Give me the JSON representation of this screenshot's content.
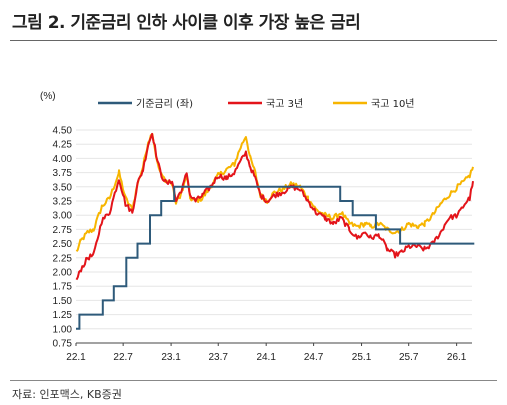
{
  "title": "그림 2. 기준금리 인하 사이클 이후 가장 높은 금리",
  "source": "자료: 인포맥스, KB증권",
  "chart_data": {
    "type": "line",
    "unit": "(%)",
    "x_ticks": [
      "22.1",
      "22.7",
      "23.1",
      "23.7",
      "24.1",
      "24.7",
      "25.1",
      "25.7",
      "26.1"
    ],
    "xlim": [
      "2022-01",
      "2026-03"
    ],
    "ylim": [
      0.75,
      4.5
    ],
    "y_ticks": [
      "4.50",
      "4.25",
      "4.00",
      "3.75",
      "3.50",
      "3.25",
      "3.00",
      "2.75",
      "2.50",
      "2.25",
      "2.00",
      "1.75",
      "1.50",
      "1.25",
      "1.00",
      "0.75"
    ],
    "legend_position": "top",
    "colors": {
      "base_rate": "#2e5a7a",
      "ktb3y": "#e3141a",
      "ktb10y": "#f7b500",
      "grid": "#e6e6e6"
    },
    "series": [
      {
        "name": "기준금리 (좌)",
        "kind": "step",
        "points": [
          [
            "2022-01-01",
            1.0
          ],
          [
            "2022-01-14",
            1.25
          ],
          [
            "2022-04-14",
            1.5
          ],
          [
            "2022-05-26",
            1.75
          ],
          [
            "2022-07-13",
            2.25
          ],
          [
            "2022-08-25",
            2.5
          ],
          [
            "2022-10-12",
            3.0
          ],
          [
            "2022-11-24",
            3.25
          ],
          [
            "2023-01-13",
            3.5
          ],
          [
            "2024-10-11",
            3.25
          ],
          [
            "2024-11-28",
            3.0
          ],
          [
            "2025-02-25",
            2.75
          ],
          [
            "2025-05-29",
            2.5
          ],
          [
            "2026-03-10",
            2.5
          ]
        ]
      },
      {
        "name": "국고 3년",
        "kind": "line",
        "points": [
          [
            "2022-01-03",
            1.85
          ],
          [
            "2022-01-20",
            2.05
          ],
          [
            "2022-02-15",
            2.25
          ],
          [
            "2022-03-10",
            2.3
          ],
          [
            "2022-04-10",
            2.9
          ],
          [
            "2022-05-10",
            3.05
          ],
          [
            "2022-06-15",
            3.65
          ],
          [
            "2022-07-10",
            3.2
          ],
          [
            "2022-08-05",
            3.05
          ],
          [
            "2022-08-25",
            3.55
          ],
          [
            "2022-09-15",
            3.8
          ],
          [
            "2022-10-05",
            4.25
          ],
          [
            "2022-10-21",
            4.45
          ],
          [
            "2022-11-10",
            3.95
          ],
          [
            "2022-11-25",
            3.7
          ],
          [
            "2022-12-15",
            3.55
          ],
          [
            "2023-01-05",
            3.6
          ],
          [
            "2023-01-20",
            3.25
          ],
          [
            "2023-02-15",
            3.5
          ],
          [
            "2023-03-02",
            3.75
          ],
          [
            "2023-03-15",
            3.35
          ],
          [
            "2023-04-05",
            3.25
          ],
          [
            "2023-05-01",
            3.35
          ],
          [
            "2023-06-01",
            3.5
          ],
          [
            "2023-07-01",
            3.7
          ],
          [
            "2023-08-01",
            3.65
          ],
          [
            "2023-09-01",
            3.75
          ],
          [
            "2023-09-25",
            3.95
          ],
          [
            "2023-10-15",
            4.1
          ],
          [
            "2023-11-01",
            3.85
          ],
          [
            "2023-11-20",
            3.65
          ],
          [
            "2023-12-10",
            3.35
          ],
          [
            "2024-01-05",
            3.25
          ],
          [
            "2024-02-01",
            3.35
          ],
          [
            "2024-03-01",
            3.4
          ],
          [
            "2024-04-10",
            3.5
          ],
          [
            "2024-05-10",
            3.45
          ],
          [
            "2024-06-10",
            3.25
          ],
          [
            "2024-07-10",
            3.05
          ],
          [
            "2024-08-15",
            2.95
          ],
          [
            "2024-09-15",
            2.85
          ],
          [
            "2024-10-15",
            2.95
          ],
          [
            "2024-11-15",
            2.75
          ],
          [
            "2024-12-15",
            2.6
          ],
          [
            "2025-01-15",
            2.7
          ],
          [
            "2025-02-05",
            2.6
          ],
          [
            "2025-03-10",
            2.65
          ],
          [
            "2025-04-10",
            2.4
          ],
          [
            "2025-05-10",
            2.3
          ],
          [
            "2025-06-05",
            2.35
          ],
          [
            "2025-07-01",
            2.45
          ],
          [
            "2025-08-01",
            2.45
          ],
          [
            "2025-09-01",
            2.4
          ],
          [
            "2025-10-01",
            2.5
          ],
          [
            "2025-11-01",
            2.7
          ],
          [
            "2025-12-01",
            2.95
          ],
          [
            "2026-01-05",
            3.0
          ],
          [
            "2026-02-01",
            3.2
          ],
          [
            "2026-02-20",
            3.3
          ],
          [
            "2026-03-05",
            3.6
          ]
        ]
      },
      {
        "name": "국고 10년",
        "kind": "line",
        "points": [
          [
            "2022-01-03",
            2.35
          ],
          [
            "2022-01-20",
            2.55
          ],
          [
            "2022-02-15",
            2.7
          ],
          [
            "2022-03-10",
            2.75
          ],
          [
            "2022-04-10",
            3.15
          ],
          [
            "2022-05-10",
            3.3
          ],
          [
            "2022-06-15",
            3.75
          ],
          [
            "2022-07-10",
            3.3
          ],
          [
            "2022-08-05",
            3.1
          ],
          [
            "2022-08-25",
            3.55
          ],
          [
            "2022-09-15",
            3.85
          ],
          [
            "2022-10-05",
            4.3
          ],
          [
            "2022-10-21",
            4.45
          ],
          [
            "2022-11-10",
            3.9
          ],
          [
            "2022-11-25",
            3.7
          ],
          [
            "2022-12-15",
            3.6
          ],
          [
            "2023-01-05",
            3.55
          ],
          [
            "2023-01-20",
            3.2
          ],
          [
            "2023-02-15",
            3.45
          ],
          [
            "2023-03-02",
            3.7
          ],
          [
            "2023-03-15",
            3.3
          ],
          [
            "2023-04-05",
            3.25
          ],
          [
            "2023-05-01",
            3.3
          ],
          [
            "2023-06-01",
            3.5
          ],
          [
            "2023-07-01",
            3.7
          ],
          [
            "2023-08-01",
            3.8
          ],
          [
            "2023-09-01",
            3.9
          ],
          [
            "2023-09-25",
            4.2
          ],
          [
            "2023-10-15",
            4.4
          ],
          [
            "2023-11-01",
            4.0
          ],
          [
            "2023-11-20",
            3.75
          ],
          [
            "2023-12-10",
            3.35
          ],
          [
            "2024-01-05",
            3.25
          ],
          [
            "2024-02-01",
            3.4
          ],
          [
            "2024-03-01",
            3.45
          ],
          [
            "2024-04-10",
            3.55
          ],
          [
            "2024-05-10",
            3.5
          ],
          [
            "2024-06-10",
            3.3
          ],
          [
            "2024-07-10",
            3.1
          ],
          [
            "2024-08-15",
            3.0
          ],
          [
            "2024-09-15",
            2.95
          ],
          [
            "2024-10-15",
            3.05
          ],
          [
            "2024-11-15",
            2.85
          ],
          [
            "2024-12-15",
            2.8
          ],
          [
            "2025-01-15",
            2.85
          ],
          [
            "2025-02-05",
            2.8
          ],
          [
            "2025-03-10",
            2.85
          ],
          [
            "2025-04-10",
            2.75
          ],
          [
            "2025-05-10",
            2.7
          ],
          [
            "2025-06-05",
            2.75
          ],
          [
            "2025-07-01",
            2.85
          ],
          [
            "2025-08-01",
            2.8
          ],
          [
            "2025-09-01",
            2.85
          ],
          [
            "2025-10-01",
            3.0
          ],
          [
            "2025-11-01",
            3.2
          ],
          [
            "2025-12-01",
            3.35
          ],
          [
            "2026-01-05",
            3.5
          ],
          [
            "2026-02-01",
            3.6
          ],
          [
            "2026-02-20",
            3.7
          ],
          [
            "2026-03-05",
            3.85
          ]
        ]
      }
    ]
  }
}
